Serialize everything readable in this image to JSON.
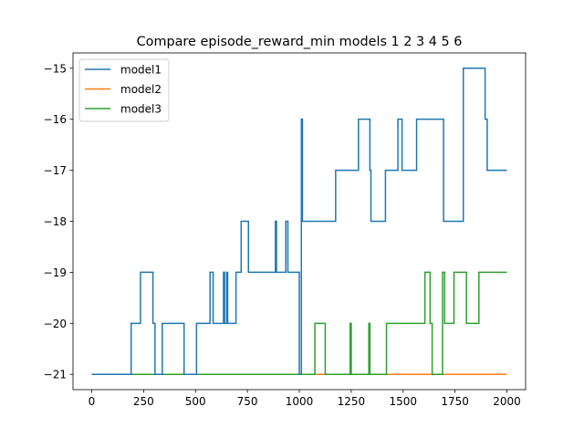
{
  "chart_data": {
    "type": "line",
    "title": "Compare episode_reward_min models 1 2 3 4 5 6",
    "xlabel": "",
    "ylabel": "",
    "xlim": [
      -90,
      2090
    ],
    "ylim": [
      -21.3,
      -14.7
    ],
    "xticks": [
      0,
      250,
      500,
      750,
      1000,
      1250,
      1500,
      1750,
      2000
    ],
    "yticks": [
      -21,
      -20,
      -19,
      -18,
      -17,
      -16,
      -15
    ],
    "xtick_labels": [
      "0",
      "250",
      "500",
      "750",
      "1000",
      "1250",
      "1500",
      "1750",
      "2000"
    ],
    "ytick_labels": [
      "−21",
      "−20",
      "−19",
      "−18",
      "−17",
      "−16",
      "−15"
    ],
    "grid": false,
    "legend_position": "top-left",
    "series": [
      {
        "name": "model1",
        "color": "#1f77b4",
        "points": [
          [
            0,
            -21
          ],
          [
            190,
            -21
          ],
          [
            190,
            -20
          ],
          [
            235,
            -20
          ],
          [
            235,
            -19
          ],
          [
            295,
            -19
          ],
          [
            295,
            -20
          ],
          [
            305,
            -20
          ],
          [
            305,
            -21
          ],
          [
            340,
            -21
          ],
          [
            340,
            -20
          ],
          [
            445,
            -20
          ],
          [
            445,
            -21
          ],
          [
            505,
            -21
          ],
          [
            505,
            -20
          ],
          [
            570,
            -20
          ],
          [
            570,
            -19
          ],
          [
            585,
            -19
          ],
          [
            585,
            -20
          ],
          [
            635,
            -20
          ],
          [
            635,
            -19
          ],
          [
            640,
            -19
          ],
          [
            640,
            -20
          ],
          [
            650,
            -20
          ],
          [
            650,
            -19
          ],
          [
            655,
            -19
          ],
          [
            655,
            -20
          ],
          [
            695,
            -20
          ],
          [
            695,
            -19
          ],
          [
            720,
            -19
          ],
          [
            720,
            -18
          ],
          [
            755,
            -18
          ],
          [
            755,
            -19
          ],
          [
            885,
            -19
          ],
          [
            885,
            -18
          ],
          [
            890,
            -18
          ],
          [
            890,
            -19
          ],
          [
            935,
            -19
          ],
          [
            935,
            -18
          ],
          [
            945,
            -18
          ],
          [
            945,
            -19
          ],
          [
            1000,
            -19
          ],
          [
            1000,
            -21
          ],
          [
            1010,
            -21
          ],
          [
            1010,
            -16
          ],
          [
            1015,
            -16
          ],
          [
            1015,
            -18
          ],
          [
            1175,
            -18
          ],
          [
            1175,
            -17
          ],
          [
            1285,
            -17
          ],
          [
            1285,
            -16
          ],
          [
            1340,
            -16
          ],
          [
            1340,
            -17
          ],
          [
            1345,
            -17
          ],
          [
            1345,
            -18
          ],
          [
            1415,
            -18
          ],
          [
            1415,
            -17
          ],
          [
            1475,
            -17
          ],
          [
            1475,
            -16
          ],
          [
            1495,
            -16
          ],
          [
            1495,
            -17
          ],
          [
            1565,
            -17
          ],
          [
            1565,
            -16
          ],
          [
            1695,
            -16
          ],
          [
            1695,
            -18
          ],
          [
            1790,
            -18
          ],
          [
            1790,
            -15
          ],
          [
            1895,
            -15
          ],
          [
            1895,
            -16
          ],
          [
            1905,
            -16
          ],
          [
            1905,
            -17
          ],
          [
            2000,
            -17
          ]
        ]
      },
      {
        "name": "model2",
        "color": "#ff7f0e",
        "points": [
          [
            0,
            -21
          ],
          [
            2000,
            -21
          ]
        ]
      },
      {
        "name": "model3",
        "color": "#2ca02c",
        "points": [
          [
            0,
            -21
          ],
          [
            1075,
            -21
          ],
          [
            1075,
            -20
          ],
          [
            1125,
            -20
          ],
          [
            1125,
            -21
          ],
          [
            1245,
            -21
          ],
          [
            1245,
            -20
          ],
          [
            1250,
            -20
          ],
          [
            1250,
            -21
          ],
          [
            1335,
            -21
          ],
          [
            1335,
            -20
          ],
          [
            1340,
            -20
          ],
          [
            1340,
            -21
          ],
          [
            1420,
            -21
          ],
          [
            1420,
            -20
          ],
          [
            1605,
            -20
          ],
          [
            1605,
            -19
          ],
          [
            1630,
            -19
          ],
          [
            1630,
            -20
          ],
          [
            1640,
            -20
          ],
          [
            1640,
            -21
          ],
          [
            1690,
            -21
          ],
          [
            1690,
            -19
          ],
          [
            1700,
            -19
          ],
          [
            1700,
            -20
          ],
          [
            1745,
            -20
          ],
          [
            1745,
            -19
          ],
          [
            1805,
            -19
          ],
          [
            1805,
            -20
          ],
          [
            1865,
            -20
          ],
          [
            1865,
            -19
          ],
          [
            2000,
            -19
          ]
        ]
      }
    ]
  }
}
